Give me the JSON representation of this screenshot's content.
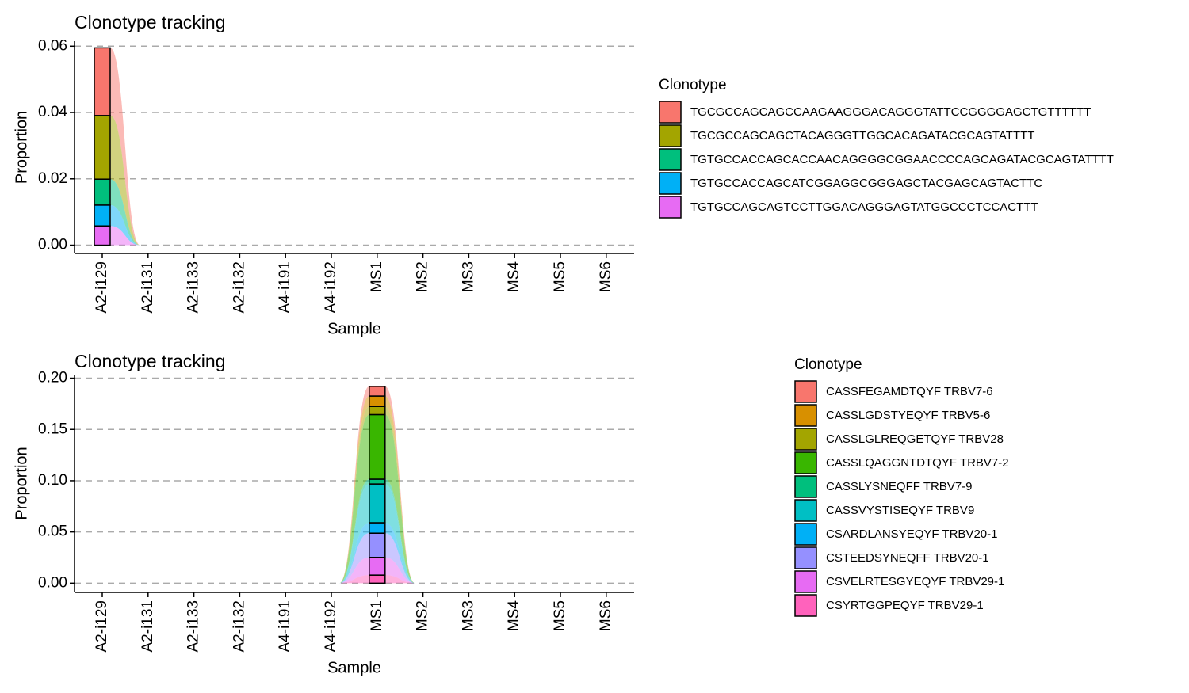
{
  "chart_data": [
    {
      "type": "bar",
      "stacked": true,
      "title": "Clonotype tracking",
      "xlabel": "Sample",
      "ylabel": "Proportion",
      "legend_title": "Clonotype",
      "grid": true,
      "categories": [
        "A2-i129",
        "A2-i131",
        "A2-i133",
        "A2-i132",
        "A4-i191",
        "A4-i192",
        "MS1",
        "MS2",
        "MS3",
        "MS4",
        "MS5",
        "MS6"
      ],
      "ylim": [
        -0.0025,
        0.0615
      ],
      "yticks": [
        {
          "value": 0,
          "label": "0.00"
        },
        {
          "value": 0.02,
          "label": "0.02"
        },
        {
          "value": 0.04,
          "label": "0.04"
        },
        {
          "value": 0.06,
          "label": "0.06"
        }
      ],
      "series": [
        {
          "name": "TGCGCCAGCAGCCAAGAAGGGACAGGGTATTCCGGGGAGCTGTTTTTT",
          "color": "#F8766D",
          "values": [
            0.0204,
            0,
            0,
            0,
            0,
            0,
            0,
            0,
            0,
            0,
            0,
            0
          ]
        },
        {
          "name": "TGCGCCAGCAGCTACAGGGTTGGCACAGATACGCAGTATTTT",
          "color": "#A3A500",
          "values": [
            0.0192,
            0,
            0,
            0,
            0,
            0,
            0,
            0,
            0,
            0,
            0,
            0
          ]
        },
        {
          "name": "TGTGCCACCAGCACCAACAGGGGCGGAACCCCAGCAGATACGCAGTATTTT",
          "color": "#00BF7D",
          "values": [
            0.0078,
            0,
            0,
            0,
            0,
            0,
            0,
            0,
            0,
            0,
            0,
            0
          ]
        },
        {
          "name": "TGTGCCACCAGCATCGGAGGCGGGAGCTACGAGCAGTACTTC",
          "color": "#00B0F6",
          "values": [
            0.0063,
            0,
            0,
            0,
            0,
            0,
            0,
            0,
            0,
            0,
            0,
            0
          ]
        },
        {
          "name": "TGTGCCAGCAGTCCTTGGACAGGGAGTATGGCCCTCCACTTT",
          "color": "#E76BF3",
          "values": [
            0.0058,
            0,
            0,
            0,
            0,
            0,
            0,
            0,
            0,
            0,
            0,
            0
          ]
        }
      ]
    },
    {
      "type": "bar",
      "stacked": true,
      "title": "Clonotype tracking",
      "xlabel": "Sample",
      "ylabel": "Proportion",
      "legend_title": "Clonotype",
      "grid": true,
      "categories": [
        "A2-i129",
        "A2-i131",
        "A2-i133",
        "A2-i132",
        "A4-i191",
        "A4-i192",
        "MS1",
        "MS2",
        "MS3",
        "MS4",
        "MS5",
        "MS6"
      ],
      "ylim": [
        -0.009,
        0.2035
      ],
      "yticks": [
        {
          "value": 0,
          "label": "0.00"
        },
        {
          "value": 0.05,
          "label": "0.05"
        },
        {
          "value": 0.1,
          "label": "0.10"
        },
        {
          "value": 0.15,
          "label": "0.15"
        },
        {
          "value": 0.2,
          "label": "0.20"
        }
      ],
      "series": [
        {
          "name": "CASSFEGAMDTQYF TRBV7-6",
          "color": "#F8766D",
          "values": [
            0,
            0,
            0,
            0,
            0,
            0,
            0.0094,
            0,
            0,
            0,
            0,
            0
          ]
        },
        {
          "name": "CASSLGDSTYEQYF TRBV5-6",
          "color": "#D89000",
          "values": [
            0,
            0,
            0,
            0,
            0,
            0,
            0.0102,
            0,
            0,
            0,
            0,
            0
          ]
        },
        {
          "name": "CASSLGLREQGETQYF TRBV28",
          "color": "#A3A500",
          "values": [
            0,
            0,
            0,
            0,
            0,
            0,
            0.0079,
            0,
            0,
            0,
            0,
            0
          ]
        },
        {
          "name": "CASSLQAGGNTDTQYF TRBV7-2",
          "color": "#39B600",
          "values": [
            0,
            0,
            0,
            0,
            0,
            0,
            0.063,
            0,
            0,
            0,
            0,
            0
          ]
        },
        {
          "name": "CASSLYSNEQFF TRBV7-9",
          "color": "#00BF7D",
          "values": [
            0,
            0,
            0,
            0,
            0,
            0,
            0.0047,
            0,
            0,
            0,
            0,
            0
          ]
        },
        {
          "name": "CASSVYSTISEQYF TRBV9",
          "color": "#00BFC4",
          "values": [
            0,
            0,
            0,
            0,
            0,
            0,
            0.0378,
            0,
            0,
            0,
            0,
            0
          ]
        },
        {
          "name": "CSARDLANSYEQYF TRBV20-1",
          "color": "#00B0F6",
          "values": [
            0,
            0,
            0,
            0,
            0,
            0,
            0.0102,
            0,
            0,
            0,
            0,
            0
          ]
        },
        {
          "name": "CSTEEDSYNEQFF TRBV20-1",
          "color": "#9590FF",
          "values": [
            0,
            0,
            0,
            0,
            0,
            0,
            0.0236,
            0,
            0,
            0,
            0,
            0
          ]
        },
        {
          "name": "CSVELRTESGYEQYF TRBV29-1",
          "color": "#E76BF3",
          "values": [
            0,
            0,
            0,
            0,
            0,
            0,
            0.0173,
            0,
            0,
            0,
            0,
            0
          ]
        },
        {
          "name": "CSYRTGGPEQYF TRBV29-1",
          "color": "#FF62BC",
          "values": [
            0,
            0,
            0,
            0,
            0,
            0,
            0.0079,
            0,
            0,
            0,
            0,
            0
          ]
        }
      ]
    }
  ]
}
